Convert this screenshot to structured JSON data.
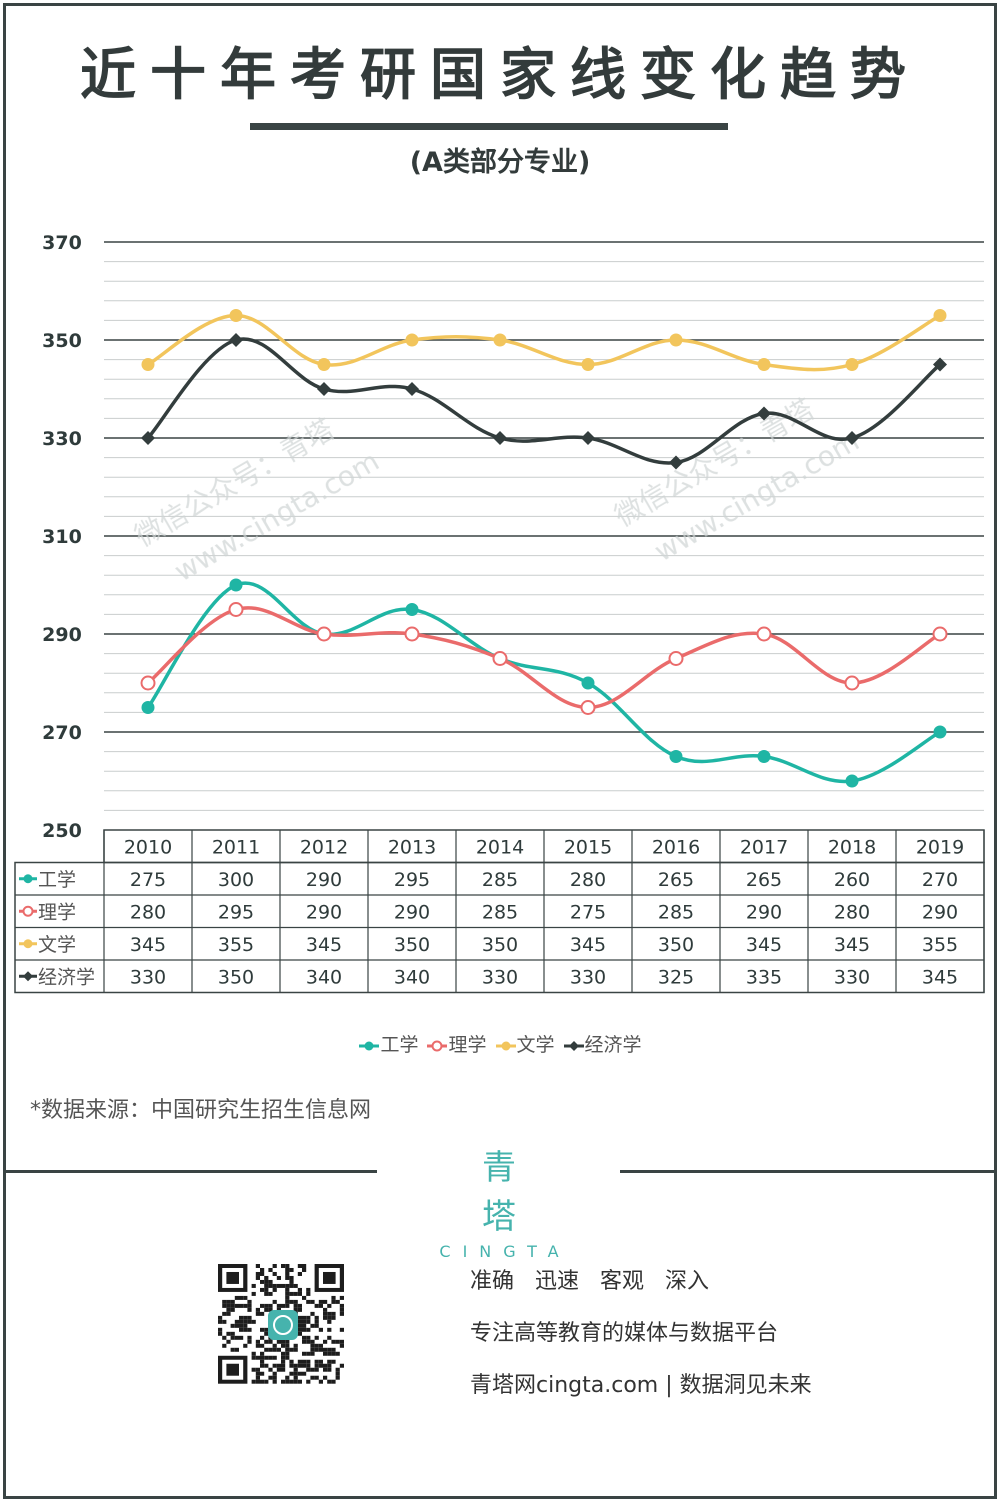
{
  "header": {
    "title": "近十年考研国家线变化趋势",
    "subtitle": "(A类部分专业)"
  },
  "chart_data": {
    "type": "line",
    "x": [
      "2010",
      "2011",
      "2012",
      "2013",
      "2014",
      "2015",
      "2016",
      "2017",
      "2018",
      "2019"
    ],
    "ylim": [
      250,
      370
    ],
    "yticks": [
      250,
      270,
      290,
      310,
      330,
      350,
      370
    ],
    "grid": true,
    "legend_position": "bottom",
    "series": [
      {
        "name": "工学",
        "color": "#1fb5a4",
        "marker": "filled-circle",
        "values": [
          275,
          300,
          290,
          295,
          285,
          280,
          265,
          265,
          260,
          270
        ]
      },
      {
        "name": "理学",
        "color": "#ea6b6b",
        "marker": "hollow-circle",
        "values": [
          280,
          295,
          290,
          290,
          285,
          275,
          285,
          290,
          280,
          290
        ]
      },
      {
        "name": "文学",
        "color": "#f2c55c",
        "marker": "filled-circle",
        "values": [
          345,
          355,
          345,
          350,
          350,
          345,
          350,
          345,
          345,
          355
        ]
      },
      {
        "name": "经济学",
        "color": "#333d3d",
        "marker": "diamond",
        "values": [
          330,
          350,
          340,
          340,
          330,
          330,
          325,
          335,
          330,
          345
        ]
      }
    ]
  },
  "watermarks": [
    "微信公众号：青塔",
    "www.cingta.com"
  ],
  "source": "*数据来源：中国研究生招生信息网",
  "brand": {
    "cn": "青塔",
    "en": "CINGTA"
  },
  "footer": {
    "tagline1": "准确 迅速 客观 深入",
    "tagline2": "专注高等教育的媒体与数据平台",
    "tagline3": "青塔网cingta.com | 数据洞见未来"
  }
}
